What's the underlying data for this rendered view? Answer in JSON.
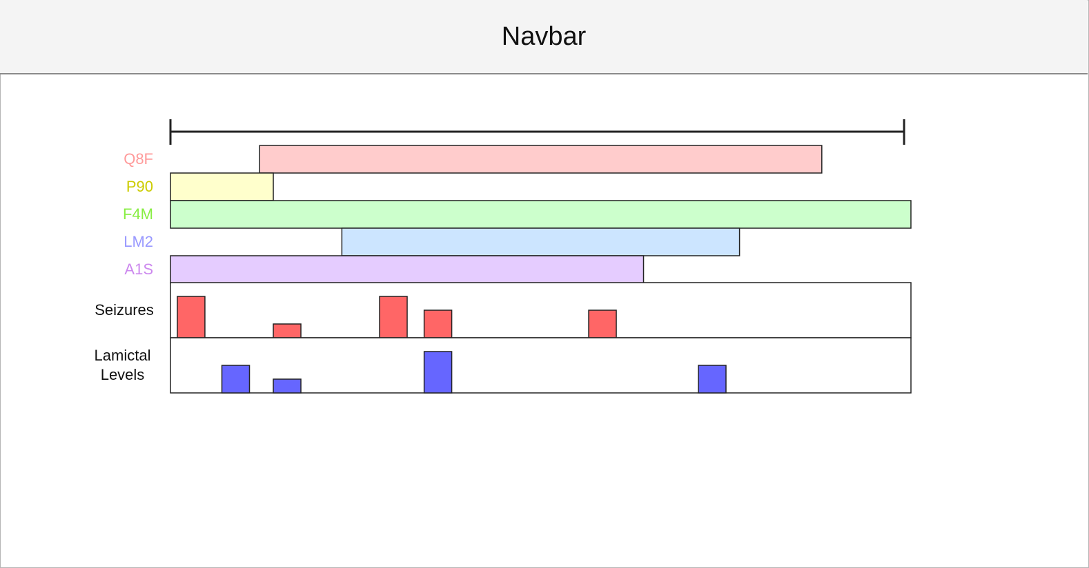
{
  "navbar": {
    "title": "Navbar"
  },
  "medications": [
    {
      "label": "Q8F",
      "color": "#ff9a9a",
      "fill": "#ffcccc",
      "start": 13,
      "end": 95
    },
    {
      "label": "P90",
      "color": "#cccc00",
      "fill": "#ffffcc",
      "start": 0,
      "end": 15
    },
    {
      "label": "F4M",
      "color": "#88ee44",
      "fill": "#ccffcc",
      "start": 0,
      "end": 108
    },
    {
      "label": "LM2",
      "color": "#9999ff",
      "fill": "#cce5ff",
      "start": 25,
      "end": 83
    },
    {
      "label": "A1S",
      "color": "#cc88ee",
      "fill": "#e5ccff",
      "start": 0,
      "end": 69
    }
  ],
  "seizures": {
    "label": "Seizures",
    "color": "#ff6666",
    "events": [
      {
        "t": 1,
        "value": 3
      },
      {
        "t": 15,
        "value": 1
      },
      {
        "t": 30.5,
        "value": 3
      },
      {
        "t": 37,
        "value": 2
      },
      {
        "t": 61,
        "value": 2
      }
    ]
  },
  "lamictal": {
    "label_line1": "Lamictal",
    "label_line2": "Levels",
    "color": "#6666ff",
    "events": [
      {
        "t": 7.5,
        "value": 2
      },
      {
        "t": 15,
        "value": 1
      },
      {
        "t": 37,
        "value": 3
      },
      {
        "t": 77,
        "value": 2
      }
    ]
  },
  "scale": {
    "min": 0,
    "max": 107
  }
}
